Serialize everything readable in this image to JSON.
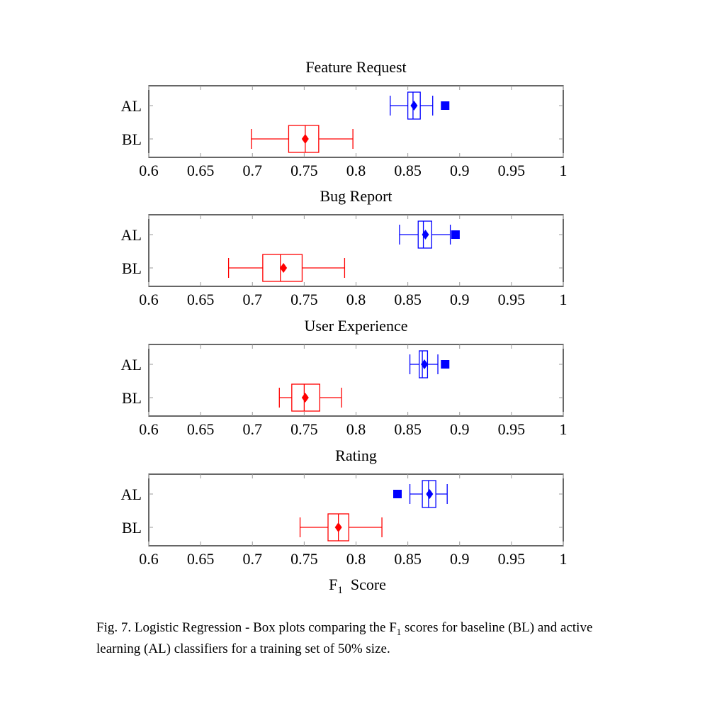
{
  "chart_data": [
    {
      "type": "boxplot",
      "title": "Feature Request",
      "categories": [
        "AL",
        "BL"
      ],
      "xlim": [
        0.6,
        1
      ],
      "xticks": [
        "0.6",
        "0.65",
        "0.7",
        "0.75",
        "0.8",
        "0.85",
        "0.9",
        "0.95",
        "1"
      ],
      "series": [
        {
          "name": "AL",
          "color": "#0000ff",
          "whisker_low": 0.833,
          "q1": 0.85,
          "median": 0.855,
          "q3": 0.862,
          "whisker_high": 0.874,
          "mean": 0.856,
          "outliers": [
            0.886
          ]
        },
        {
          "name": "BL",
          "color": "#ff0000",
          "whisker_low": 0.699,
          "q1": 0.735,
          "median": 0.751,
          "q3": 0.764,
          "whisker_high": 0.797,
          "mean": 0.751,
          "outliers": []
        }
      ]
    },
    {
      "type": "boxplot",
      "title": "Bug Report",
      "categories": [
        "AL",
        "BL"
      ],
      "xlim": [
        0.6,
        1
      ],
      "xticks": [
        "0.6",
        "0.65",
        "0.7",
        "0.75",
        "0.8",
        "0.85",
        "0.9",
        "0.95",
        "1"
      ],
      "series": [
        {
          "name": "AL",
          "color": "#0000ff",
          "whisker_low": 0.842,
          "q1": 0.86,
          "median": 0.865,
          "q3": 0.873,
          "whisker_high": 0.891,
          "mean": 0.867,
          "outliers": [
            0.896
          ]
        },
        {
          "name": "BL",
          "color": "#ff0000",
          "whisker_low": 0.677,
          "q1": 0.71,
          "median": 0.727,
          "q3": 0.748,
          "whisker_high": 0.789,
          "mean": 0.73,
          "outliers": []
        }
      ]
    },
    {
      "type": "boxplot",
      "title": "User Experience",
      "categories": [
        "AL",
        "BL"
      ],
      "xlim": [
        0.6,
        1
      ],
      "xticks": [
        "0.6",
        "0.65",
        "0.7",
        "0.75",
        "0.8",
        "0.85",
        "0.9",
        "0.95",
        "1"
      ],
      "series": [
        {
          "name": "AL",
          "color": "#0000ff",
          "whisker_low": 0.852,
          "q1": 0.861,
          "median": 0.864,
          "q3": 0.869,
          "whisker_high": 0.879,
          "mean": 0.866,
          "outliers": [
            0.886
          ]
        },
        {
          "name": "BL",
          "color": "#ff0000",
          "whisker_low": 0.726,
          "q1": 0.738,
          "median": 0.75,
          "q3": 0.765,
          "whisker_high": 0.786,
          "mean": 0.751,
          "outliers": []
        }
      ]
    },
    {
      "type": "boxplot",
      "title": "Rating",
      "categories": [
        "AL",
        "BL"
      ],
      "xlim": [
        0.6,
        1
      ],
      "xticks": [
        "0.6",
        "0.65",
        "0.7",
        "0.75",
        "0.8",
        "0.85",
        "0.9",
        "0.95",
        "1"
      ],
      "xlabel_main": "F",
      "xlabel_sub": "1",
      "xlabel_rest": "Score",
      "series": [
        {
          "name": "AL",
          "color": "#0000ff",
          "whisker_low": 0.852,
          "q1": 0.864,
          "median": 0.87,
          "q3": 0.877,
          "whisker_high": 0.888,
          "mean": 0.871,
          "outliers": [
            0.84
          ]
        },
        {
          "name": "BL",
          "color": "#ff0000",
          "whisker_low": 0.746,
          "q1": 0.773,
          "median": 0.783,
          "q3": 0.793,
          "whisker_high": 0.825,
          "mean": 0.783,
          "outliers": []
        }
      ]
    }
  ],
  "caption": {
    "prefix": "Fig. 7.  Logistic Regression - Box plots comparing the F",
    "sub": "1",
    "suffix": " scores for baseline (BL) and active learning (AL) classifiers for a training set of 50% size."
  }
}
